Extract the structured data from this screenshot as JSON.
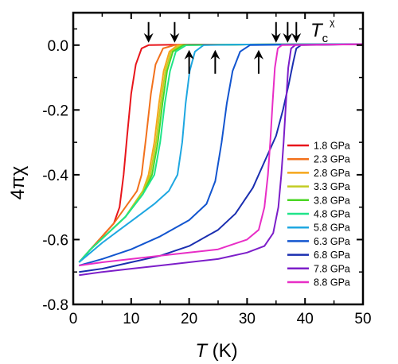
{
  "chart_data": {
    "type": "line",
    "xlabel": {
      "italic": "T",
      "rest": " (K)"
    },
    "ylabel": "4πχ",
    "xlim": [
      0,
      50
    ],
    "ylim": [
      -0.8,
      0.1
    ],
    "xticks": [
      0,
      10,
      20,
      30,
      40,
      50
    ],
    "yticks": [
      0.0,
      -0.2,
      -0.4,
      -0.6,
      -0.8
    ],
    "ytick_labels": [
      "0.0",
      "-0.2",
      "-0.4",
      "-0.6",
      "-0.8"
    ],
    "grid": false,
    "legend_position": "right",
    "annotation": {
      "main": "T",
      "sub": "c",
      "sup": "χ"
    },
    "arrows_down_at_T": [
      13,
      17.5,
      35,
      37,
      38.5
    ],
    "arrows_up_at_T": [
      20,
      24.5,
      32
    ],
    "series": [
      {
        "name": "1.8 GPa",
        "color": "#e8151b",
        "points": [
          [
            1,
            -0.67
          ],
          [
            3,
            -0.63
          ],
          [
            5,
            -0.59
          ],
          [
            7,
            -0.55
          ],
          [
            8,
            -0.5
          ],
          [
            8.7,
            -0.4
          ],
          [
            9.3,
            -0.28
          ],
          [
            10,
            -0.15
          ],
          [
            10.8,
            -0.06
          ],
          [
            11.8,
            -0.01
          ],
          [
            13,
            0
          ],
          [
            20,
            0.002
          ],
          [
            35,
            0.002
          ],
          [
            50,
            0.003
          ]
        ]
      },
      {
        "name": "2.3 GPa",
        "color": "#f2711c",
        "points": [
          [
            1,
            -0.67
          ],
          [
            3,
            -0.63
          ],
          [
            5,
            -0.59
          ],
          [
            7,
            -0.55
          ],
          [
            9,
            -0.5
          ],
          [
            11,
            -0.45
          ],
          [
            11.8,
            -0.4
          ],
          [
            12.6,
            -0.28
          ],
          [
            13.4,
            -0.15
          ],
          [
            14.2,
            -0.06
          ],
          [
            15.5,
            -0.01
          ],
          [
            17.5,
            0
          ],
          [
            30,
            0.002
          ],
          [
            50,
            0.003
          ]
        ]
      },
      {
        "name": "2.8 GPa",
        "color": "#f5a61a",
        "points": [
          [
            1,
            -0.67
          ],
          [
            3,
            -0.63
          ],
          [
            6,
            -0.58
          ],
          [
            9,
            -0.53
          ],
          [
            12,
            -0.45
          ],
          [
            13,
            -0.4
          ],
          [
            14,
            -0.3
          ],
          [
            14.8,
            -0.18
          ],
          [
            15.6,
            -0.08
          ],
          [
            16.6,
            -0.02
          ],
          [
            18,
            0
          ],
          [
            30,
            0.002
          ],
          [
            50,
            0.003
          ]
        ]
      },
      {
        "name": "3.3 GPa",
        "color": "#c2cc23",
        "points": [
          [
            1,
            -0.67
          ],
          [
            3,
            -0.63
          ],
          [
            6,
            -0.58
          ],
          [
            9,
            -0.53
          ],
          [
            12,
            -0.45
          ],
          [
            13.3,
            -0.4
          ],
          [
            14.3,
            -0.3
          ],
          [
            15.1,
            -0.18
          ],
          [
            15.9,
            -0.08
          ],
          [
            16.9,
            -0.02
          ],
          [
            18.5,
            0
          ],
          [
            30,
            0.002
          ],
          [
            50,
            0.003
          ]
        ]
      },
      {
        "name": "3.8 GPa",
        "color": "#4bd624",
        "points": [
          [
            1,
            -0.67
          ],
          [
            3,
            -0.63
          ],
          [
            6,
            -0.58
          ],
          [
            9,
            -0.53
          ],
          [
            12,
            -0.46
          ],
          [
            13.6,
            -0.4
          ],
          [
            14.6,
            -0.3
          ],
          [
            15.4,
            -0.18
          ],
          [
            16.2,
            -0.08
          ],
          [
            17.2,
            -0.02
          ],
          [
            19,
            0
          ],
          [
            30,
            0.002
          ],
          [
            50,
            0.003
          ]
        ]
      },
      {
        "name": "4.8 GPa",
        "color": "#1fe489",
        "points": [
          [
            1,
            -0.67
          ],
          [
            3,
            -0.63
          ],
          [
            6,
            -0.58
          ],
          [
            9,
            -0.53
          ],
          [
            12,
            -0.46
          ],
          [
            14,
            -0.4
          ],
          [
            15,
            -0.3
          ],
          [
            15.8,
            -0.18
          ],
          [
            16.7,
            -0.08
          ],
          [
            17.7,
            -0.02
          ],
          [
            19.5,
            0
          ],
          [
            30,
            0.002
          ],
          [
            50,
            0.003
          ]
        ]
      },
      {
        "name": "5.8 GPa",
        "color": "#1ea7e1",
        "points": [
          [
            1,
            -0.67
          ],
          [
            3,
            -0.64
          ],
          [
            5,
            -0.61
          ],
          [
            8,
            -0.57
          ],
          [
            11,
            -0.53
          ],
          [
            14,
            -0.49
          ],
          [
            16.5,
            -0.45
          ],
          [
            18,
            -0.4
          ],
          [
            18.8,
            -0.3
          ],
          [
            19.4,
            -0.18
          ],
          [
            20.1,
            -0.08
          ],
          [
            21,
            -0.02
          ],
          [
            22.5,
            0
          ],
          [
            30,
            0.002
          ],
          [
            50,
            0.003
          ]
        ]
      },
      {
        "name": "6.3 GPa",
        "color": "#1255cf",
        "points": [
          [
            1,
            -0.68
          ],
          [
            5,
            -0.66
          ],
          [
            10,
            -0.63
          ],
          [
            15,
            -0.59
          ],
          [
            20,
            -0.54
          ],
          [
            23,
            -0.49
          ],
          [
            24.5,
            -0.42
          ],
          [
            25.6,
            -0.3
          ],
          [
            26.5,
            -0.18
          ],
          [
            27.5,
            -0.08
          ],
          [
            28.8,
            -0.02
          ],
          [
            30.5,
            0
          ],
          [
            40,
            0.002
          ],
          [
            50,
            0.003
          ]
        ]
      },
      {
        "name": "6.8 GPa",
        "color": "#1a2eb0",
        "points": [
          [
            1,
            -0.7
          ],
          [
            5,
            -0.69
          ],
          [
            10,
            -0.67
          ],
          [
            15,
            -0.65
          ],
          [
            20,
            -0.62
          ],
          [
            25,
            -0.57
          ],
          [
            28,
            -0.52
          ],
          [
            31,
            -0.44
          ],
          [
            33,
            -0.36
          ],
          [
            35,
            -0.28
          ],
          [
            36.2,
            -0.2
          ],
          [
            37.2,
            -0.12
          ],
          [
            38,
            -0.05
          ],
          [
            38.5,
            -0.01
          ],
          [
            39.3,
            0
          ],
          [
            50,
            0.003
          ]
        ]
      },
      {
        "name": "7.8 GPa",
        "color": "#7c1ec9",
        "points": [
          [
            1,
            -0.71
          ],
          [
            5,
            -0.7
          ],
          [
            10,
            -0.69
          ],
          [
            15,
            -0.68
          ],
          [
            20,
            -0.67
          ],
          [
            25,
            -0.66
          ],
          [
            30,
            -0.64
          ],
          [
            33,
            -0.62
          ],
          [
            34.5,
            -0.58
          ],
          [
            35.4,
            -0.5
          ],
          [
            35.9,
            -0.4
          ],
          [
            36.3,
            -0.3
          ],
          [
            36.7,
            -0.18
          ],
          [
            37.1,
            -0.07
          ],
          [
            37.6,
            -0.01
          ],
          [
            38.3,
            0
          ],
          [
            50,
            0.003
          ]
        ]
      },
      {
        "name": "8.8 GPa",
        "color": "#e82ec6",
        "points": [
          [
            1,
            -0.68
          ],
          [
            5,
            -0.67
          ],
          [
            10,
            -0.66
          ],
          [
            15,
            -0.65
          ],
          [
            20,
            -0.64
          ],
          [
            25,
            -0.63
          ],
          [
            30,
            -0.6
          ],
          [
            32,
            -0.57
          ],
          [
            33,
            -0.5
          ],
          [
            33.6,
            -0.4
          ],
          [
            34,
            -0.3
          ],
          [
            34.4,
            -0.18
          ],
          [
            34.8,
            -0.07
          ],
          [
            35.3,
            -0.01
          ],
          [
            36,
            0
          ],
          [
            50,
            0.003
          ]
        ]
      }
    ]
  }
}
